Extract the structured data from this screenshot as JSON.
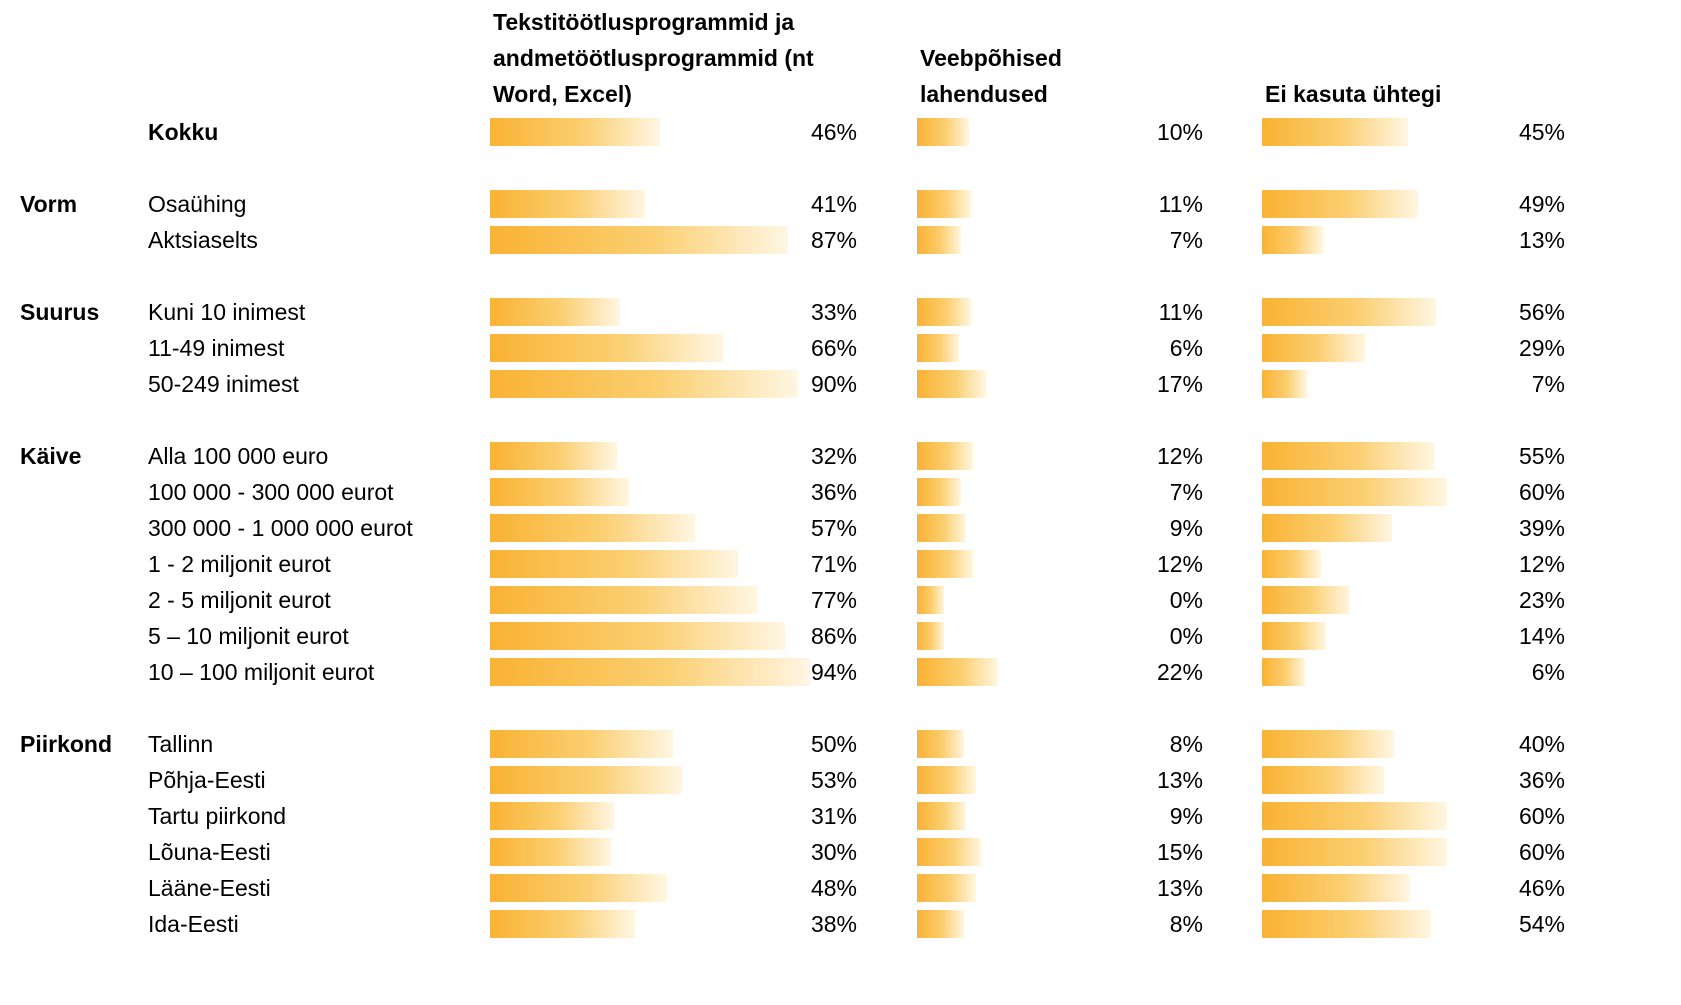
{
  "columns": [
    "Tekstitöötlusprogrammid ja andmetöötlusprogrammid (nt Word, Excel)",
    "Veebpõhised lahendused",
    "Ei kasuta ühtegi"
  ],
  "total": {
    "label": "Kokku",
    "values": [
      46,
      10,
      45
    ],
    "value_labels": [
      "46%",
      "10%",
      "45%"
    ]
  },
  "groups": [
    {
      "name": "Vorm",
      "rows": [
        {
          "label": "Osaühing",
          "values": [
            41,
            11,
            49
          ],
          "value_labels": [
            "41%",
            "11%",
            "49%"
          ]
        },
        {
          "label": "Aktsiaselts",
          "values": [
            87,
            7,
            13
          ],
          "value_labels": [
            "87%",
            "7%",
            "13%"
          ]
        }
      ]
    },
    {
      "name": "Suurus",
      "rows": [
        {
          "label": "Kuni 10 inimest",
          "values": [
            33,
            11,
            56
          ],
          "value_labels": [
            "33%",
            "11%",
            "56%"
          ]
        },
        {
          "label": "11-49 inimest",
          "values": [
            66,
            6,
            29
          ],
          "value_labels": [
            "66%",
            "6%",
            "29%"
          ]
        },
        {
          "label": "50-249 inimest",
          "values": [
            90,
            17,
            7
          ],
          "value_labels": [
            "90%",
            "17%",
            "7%"
          ]
        }
      ]
    },
    {
      "name": "Käive",
      "rows": [
        {
          "label": "Alla 100 000 euro",
          "values": [
            32,
            12,
            55
          ],
          "value_labels": [
            "32%",
            "12%",
            "55%"
          ]
        },
        {
          "label": "100 000 - 300 000 eurot",
          "values": [
            36,
            7,
            60
          ],
          "value_labels": [
            "36%",
            "7%",
            "60%"
          ]
        },
        {
          "label": "300 000 - 1 000 000 eurot",
          "values": [
            57,
            9,
            39
          ],
          "value_labels": [
            "57%",
            "9%",
            "39%"
          ]
        },
        {
          "label": "1 - 2 miljonit eurot",
          "values": [
            71,
            12,
            12
          ],
          "value_labels": [
            "71%",
            "12%",
            "12%"
          ]
        },
        {
          "label": "2 - 5 miljonit eurot",
          "values": [
            77,
            0,
            23
          ],
          "value_labels": [
            "77%",
            "0%",
            "23%"
          ]
        },
        {
          "label": "5 – 10 miljonit eurot",
          "values": [
            86,
            0,
            14
          ],
          "value_labels": [
            "86%",
            "0%",
            "14%"
          ]
        },
        {
          "label": "10 – 100 miljonit eurot",
          "values": [
            94,
            22,
            6
          ],
          "value_labels": [
            "94%",
            "22%",
            "6%"
          ]
        }
      ]
    },
    {
      "name": "Piirkond",
      "rows": [
        {
          "label": "Tallinn",
          "values": [
            50,
            8,
            40
          ],
          "value_labels": [
            "50%",
            "8%",
            "40%"
          ]
        },
        {
          "label": "Põhja-Eesti",
          "values": [
            53,
            13,
            36
          ],
          "value_labels": [
            "53%",
            "13%",
            "36%"
          ]
        },
        {
          "label": "Tartu piirkond",
          "values": [
            31,
            9,
            60
          ],
          "value_labels": [
            "31%",
            "9%",
            "60%"
          ]
        },
        {
          "label": "Lõuna-Eesti",
          "values": [
            30,
            15,
            60
          ],
          "value_labels": [
            "30%",
            "15%",
            "60%"
          ]
        },
        {
          "label": "Lääne-Eesti",
          "values": [
            48,
            13,
            46
          ],
          "value_labels": [
            "48%",
            "13%",
            "46%"
          ]
        },
        {
          "label": "Ida-Eesti",
          "values": [
            38,
            8,
            54
          ],
          "value_labels": [
            "38%",
            "8%",
            "54%"
          ]
        }
      ]
    }
  ]
}
